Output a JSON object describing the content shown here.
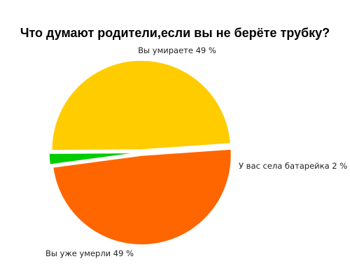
{
  "chart_data": {
    "type": "pie",
    "title": "Что думают родители,если вы не берёте трубку?",
    "slices": [
      {
        "label": "Вы умираете 49 %",
        "name": "Вы умираете",
        "value": 49,
        "color": "#ff6600"
      },
      {
        "label": "У вас села батарейка 2 %",
        "name": "У вас села батарейка",
        "value": 2,
        "color": "#00cc00"
      },
      {
        "label": "Вы уже умерли 49 %",
        "name": "Вы уже умерли",
        "value": 49,
        "color": "#ffcc00"
      }
    ],
    "legend": "none",
    "exploded": true
  }
}
